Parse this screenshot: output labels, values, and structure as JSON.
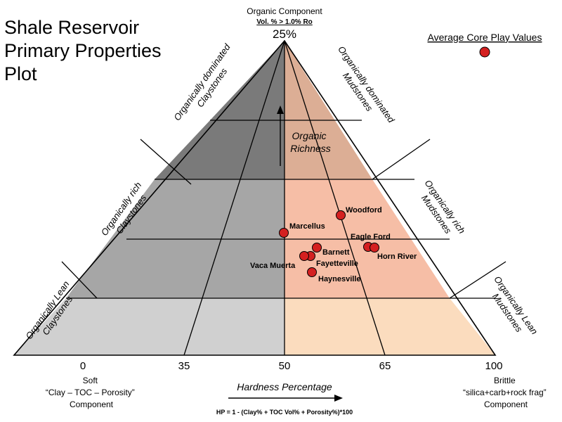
{
  "title": {
    "lines": [
      "Shale Reservoir",
      "Primary Properties",
      "Plot"
    ]
  },
  "apex": {
    "component": "Organic Component",
    "definition": "Vol. %  >  1.0% Ro",
    "value": "25%"
  },
  "legend": {
    "label": "Average Core Play Values",
    "marker_color": "#d42020"
  },
  "zones": {
    "left": [
      {
        "line1": "Organically dominated",
        "line2": "Claystones"
      },
      {
        "line1": "Organically rich",
        "line2": "Claystones"
      },
      {
        "line1": "Organically Lean",
        "line2": "Claystones"
      }
    ],
    "right": [
      {
        "line1": "Organically dominated",
        "line2": "Mudstones"
      },
      {
        "line1": "Organically rich",
        "line2": "Mudstones"
      },
      {
        "line1": "Organically Lean",
        "line2": "Mudstones"
      }
    ]
  },
  "richness_arrow": {
    "line1": "Organic",
    "line2": "Richness"
  },
  "axis": {
    "ticks": [
      "0",
      "35",
      "50",
      "65",
      "100"
    ],
    "left_label": {
      "line1": "Soft",
      "line2": "“Clay – TOC – Porosity”",
      "line3": "Component"
    },
    "right_label": {
      "line1": "Brittle",
      "line2": "“silica+carb+rock frag”",
      "line3": "Component"
    },
    "hardness_label": "Hardness Percentage",
    "formula": "HP = 1 - (Clay% + TOC Vol% + Porosity%)*100"
  },
  "colors": {
    "left_dominated": "#7a7a7a",
    "left_rich": "#a6a6a6",
    "left_lean": "#d0d0d0",
    "right_dominated": "#dcae95",
    "right_rich": "#f6bea6",
    "right_lean": "#fbdcbe",
    "point": "#d42020"
  },
  "plays": [
    {
      "name": "Woodford"
    },
    {
      "name": "Marcellus"
    },
    {
      "name": "Eagle Ford"
    },
    {
      "name": "Horn River"
    },
    {
      "name": "Barnett"
    },
    {
      "name": "Fayetteville"
    },
    {
      "name": "Vaca Muerta"
    },
    {
      "name": "Haynesville"
    }
  ]
}
